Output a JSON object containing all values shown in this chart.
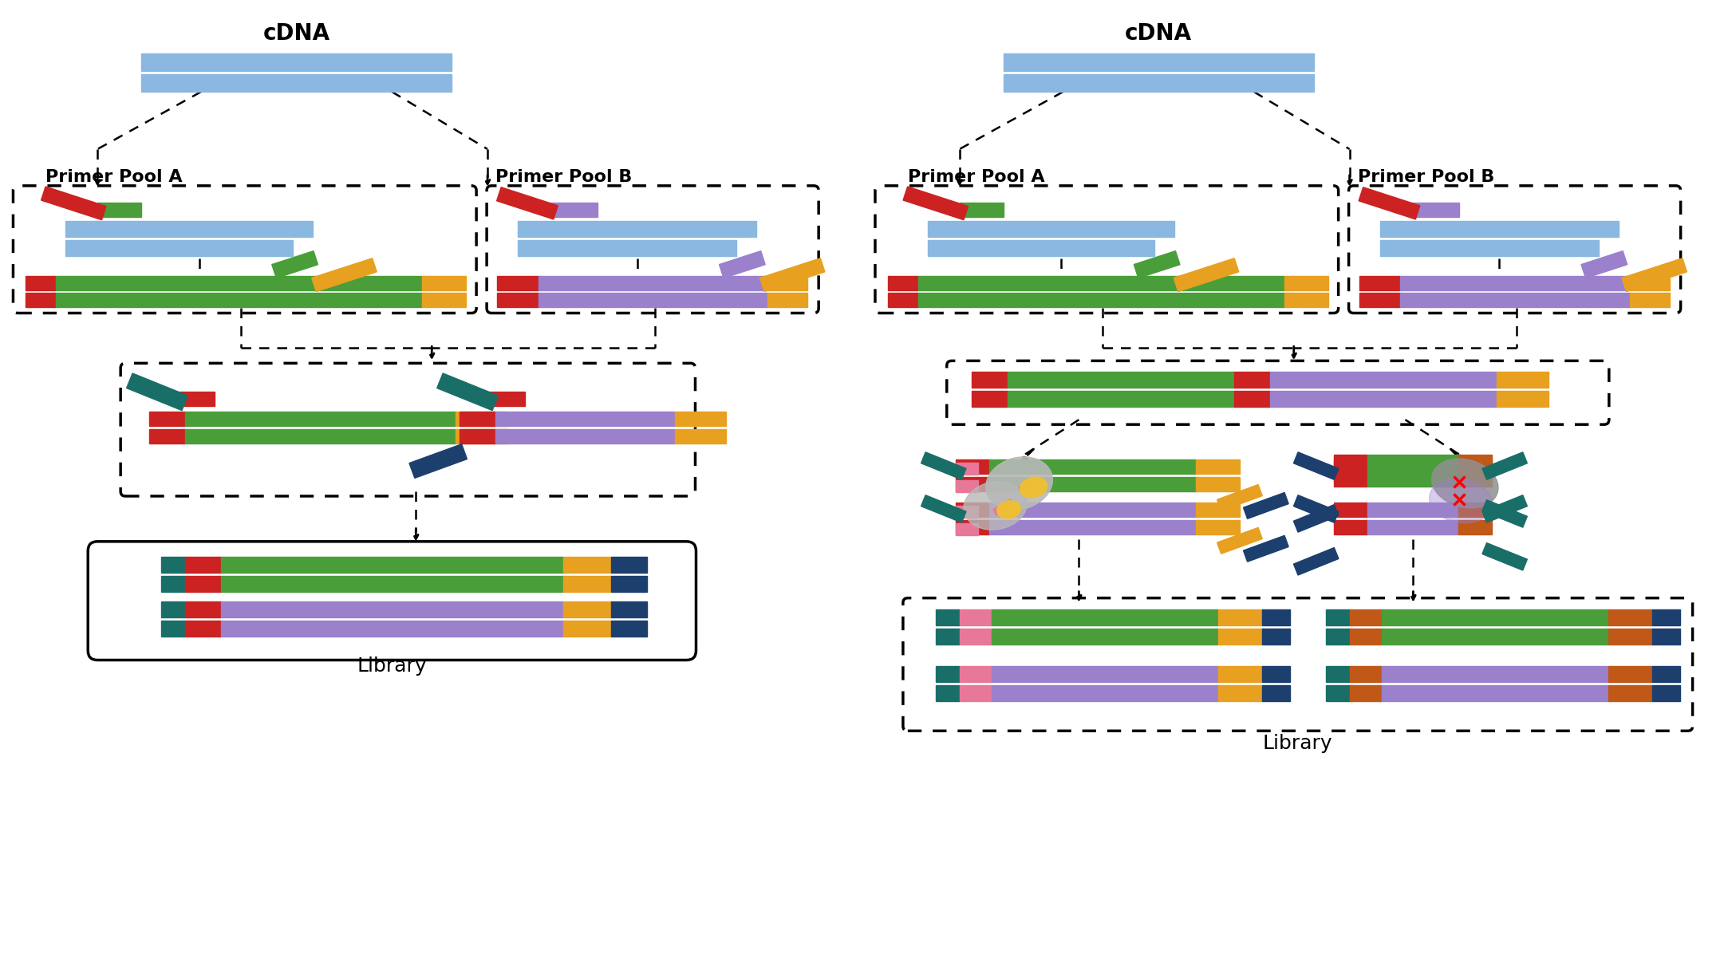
{
  "bg_color": "#ffffff",
  "title_fontsize": 20,
  "label_fontsize": 18,
  "pool_label_fontsize": 16,
  "colors": {
    "blue_light": "#8ab8e0",
    "blue_dark": "#1c3f6e",
    "red": "#cc2222",
    "green2": "#4a9e3a",
    "yellow": "#e8a020",
    "purple": "#9b80cc",
    "teal": "#1a6e68",
    "orange": "#c05818",
    "pink": "#e87898",
    "gray_light": "#b8b8b8",
    "gray_mid": "#909090",
    "yellow_bright": "#f0c030"
  },
  "left_title": "cDNA",
  "right_title": "cDNA",
  "primer_pool_a": "Primer Pool A",
  "primer_pool_b": "Primer Pool B",
  "library_label": "Library"
}
